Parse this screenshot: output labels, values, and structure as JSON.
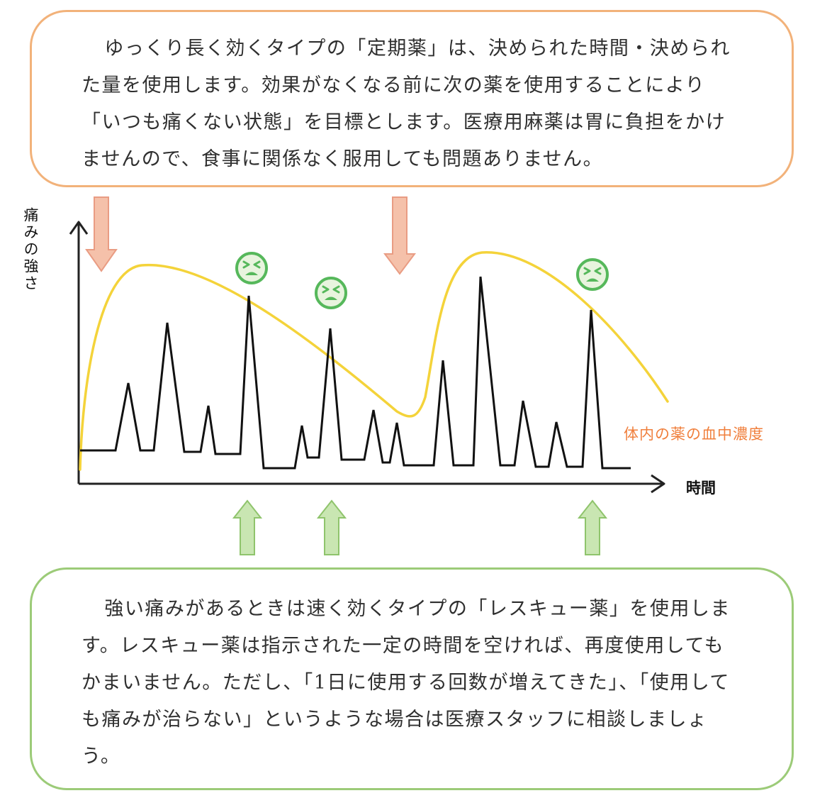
{
  "top_box": {
    "text": "ゆっくり長く効くタイプの「定期薬」は、決められた時間・決められた量を使用します。効果がなくなる前に次の薬を使用することにより「いつも痛くない状態」を目標とします。医療用麻薬は胃に負担をかけませんので、食事に関係なく服用しても問題ありません。"
  },
  "bottom_box": {
    "text": "強い痛みがあるときは速く効くタイプの「レスキュー薬」を使用します。レスキュー薬は指示された一定の時間を空ければ、再度使用してもかまいません。ただし、「1日に使用する回数が増えてきた」、「使用しても痛みが治らない」というような場合は医療スタッフに相談しましょう。"
  },
  "diagram": {
    "y_axis_label": "痛みの強さ",
    "x_axis_label": "時間",
    "concentration_label": "体内の薬の血中濃度"
  },
  "colors": {
    "orange_border": "#f2b27a",
    "green_border": "#9ccb78",
    "concentration_line": "#f4d33a",
    "concentration_label": "#f07f3c",
    "pain_line": "#111111",
    "down_arrow": "#f5c1aa",
    "up_arrow": "#c9e6b2",
    "face_icon": "#56b85b"
  },
  "icons": {
    "regular_dose_arrow": "down-arrow-icon",
    "rescue_dose_arrow": "up-arrow-icon",
    "pain_face": "pain-face-icon"
  }
}
